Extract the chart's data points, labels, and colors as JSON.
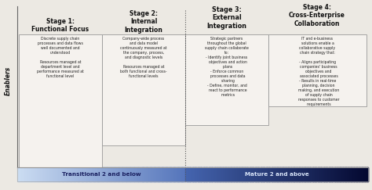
{
  "bg_color": "#ece9e3",
  "stage1_title": "Stage 1:\nFunctional Focus",
  "stage2_title": "Stage 2:\nInternal\nIntegration",
  "stage3_title": "Stage 3:\nExternal\nIntegration",
  "stage4_title": "Stage 4:\nCross-Enterprise\nCollaboration",
  "stage1_text": "Discrete supply chain\nprocesses and data flows\nwell documented and\nunderstood\n\nResources managed at\ndepartment level and\nperformance measured at\nfunctional level",
  "stage2_text": "Company-wide process\nand data model\ncontinuously measured at\nthe company, process,\nand diagnostic levels\n\nResources managed at\nboth functional and cross-\nfunctional levels",
  "stage3_text": "Strategic partners\nthroughout the global\nsupply chain collaborate\nto:\n- Identify joint business\n  objectives and action\n  plans\n- Enforce common\n  processes and data\n  sharing\n- Define, monitor, and\n  react to performance\n  metrics",
  "stage4_text": "IT and e-business\nsolutions enable a\ncollaborative supply\nchain strategy that:\n\n- Aligns participating\n  companies' business\n  objectives and\n  associated processes\n- Results in real-time\n  planning, decision\n  making, and execution\n  of supply chain\n  responses to customer\n  requirements",
  "enablers_label": "Enablers",
  "transitional_label": "Transitional 2 and below",
  "mature_label": "Mature 2 and above",
  "box_fill": "#f5f2ee",
  "box_edge": "#999999",
  "title_color": "#111111",
  "text_color": "#222222"
}
